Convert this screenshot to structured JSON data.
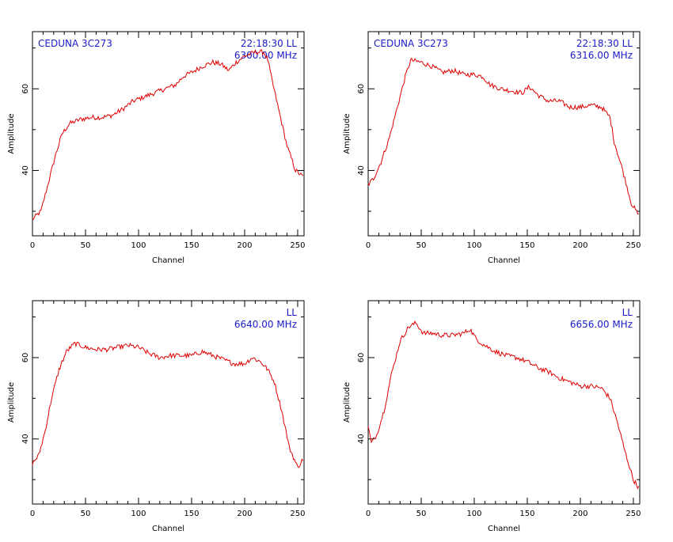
{
  "chart_data": [
    {
      "type": "line",
      "source_label": "CEDUNA 3C273",
      "time_label": "22:18:30  LL",
      "freq_label": "6300.00 MHz",
      "xlabel": "Channel",
      "ylabel": "Amplitude",
      "xlim": [
        0,
        256
      ],
      "ylim": [
        24,
        74
      ],
      "xticks": [
        0,
        50,
        100,
        150,
        200,
        250
      ],
      "yticks": [
        40,
        60
      ],
      "series": [
        {
          "color": "#e00000",
          "x": [
            0,
            8,
            15,
            22,
            28,
            35,
            45,
            55,
            65,
            75,
            85,
            95,
            105,
            115,
            125,
            135,
            142,
            150,
            160,
            170,
            178,
            185,
            192,
            200,
            210,
            218,
            222,
            225,
            232,
            240,
            248,
            255
          ],
          "y": [
            28,
            30,
            37,
            44,
            49,
            51.5,
            52.5,
            53,
            53,
            53.5,
            55,
            57,
            58,
            59,
            60,
            61,
            63,
            64,
            65.5,
            66.5,
            66,
            64.5,
            66.5,
            68,
            69,
            69,
            67,
            63,
            55,
            46,
            40,
            38.5
          ]
        }
      ]
    },
    {
      "type": "line",
      "source_label": "CEDUNA 3C273",
      "time_label": "22:18:30  LL",
      "freq_label": "6316.00 MHz",
      "xlabel": "Channel",
      "ylabel": "Amplitude",
      "xlim": [
        0,
        256
      ],
      "ylim": [
        24,
        74
      ],
      "xticks": [
        0,
        50,
        100,
        150,
        200,
        250
      ],
      "yticks": [
        40,
        60
      ],
      "series": [
        {
          "color": "#e00000",
          "x": [
            0,
            5,
            12,
            20,
            28,
            35,
            40,
            50,
            60,
            70,
            80,
            90,
            100,
            108,
            115,
            125,
            135,
            145,
            152,
            160,
            170,
            180,
            190,
            200,
            210,
            220,
            228,
            232,
            240,
            248,
            255
          ],
          "y": [
            36.5,
            38,
            42,
            48,
            56,
            63,
            67,
            66.5,
            65.5,
            64,
            64.5,
            63.5,
            63.5,
            63,
            61,
            60,
            59.5,
            59,
            60.5,
            58.5,
            57,
            57,
            55.5,
            55.5,
            56,
            55.5,
            53,
            47,
            40,
            32,
            29
          ]
        }
      ]
    },
    {
      "type": "line",
      "source_label": "",
      "time_label": "LL",
      "freq_label": "6640.00 MHz",
      "xlabel": "Channel",
      "ylabel": "Amplitude",
      "xlim": [
        0,
        256
      ],
      "ylim": [
        24,
        74
      ],
      "xticks": [
        0,
        50,
        100,
        150,
        200,
        250
      ],
      "yticks": [
        40,
        60
      ],
      "series": [
        {
          "color": "#e00000",
          "x": [
            0,
            6,
            12,
            18,
            25,
            32,
            40,
            50,
            60,
            70,
            80,
            90,
            100,
            110,
            120,
            130,
            140,
            150,
            160,
            170,
            180,
            190,
            200,
            207,
            215,
            222,
            228,
            235,
            242,
            250,
            255
          ],
          "y": [
            34,
            36,
            42,
            50,
            57,
            61.5,
            63.5,
            62.5,
            62,
            62,
            62.5,
            63,
            62.5,
            61,
            60,
            60.5,
            60.5,
            60.5,
            61.5,
            60.5,
            59.5,
            58.5,
            58.5,
            60,
            59,
            57,
            54,
            47,
            38,
            33,
            35
          ]
        }
      ]
    },
    {
      "type": "line",
      "source_label": "",
      "time_label": "LL",
      "freq_label": "6656.00 MHz",
      "xlabel": "Channel",
      "ylabel": "Amplitude",
      "xlim": [
        0,
        256
      ],
      "ylim": [
        24,
        74
      ],
      "xticks": [
        0,
        50,
        100,
        150,
        200,
        250
      ],
      "yticks": [
        40,
        60
      ],
      "series": [
        {
          "color": "#e00000",
          "x": [
            0,
            3,
            8,
            15,
            22,
            30,
            38,
            45,
            52,
            60,
            70,
            80,
            90,
            96,
            102,
            110,
            120,
            130,
            140,
            150,
            160,
            170,
            180,
            190,
            200,
            210,
            220,
            228,
            235,
            242,
            250,
            255
          ],
          "y": [
            43,
            39,
            41,
            47,
            56,
            64,
            67.5,
            68.5,
            66,
            66,
            65.5,
            65.5,
            66,
            67,
            64.5,
            63,
            61.5,
            60.5,
            60,
            59,
            57.5,
            56.5,
            55,
            54,
            53,
            53,
            52.5,
            50,
            44,
            37,
            30,
            28
          ]
        }
      ]
    }
  ]
}
